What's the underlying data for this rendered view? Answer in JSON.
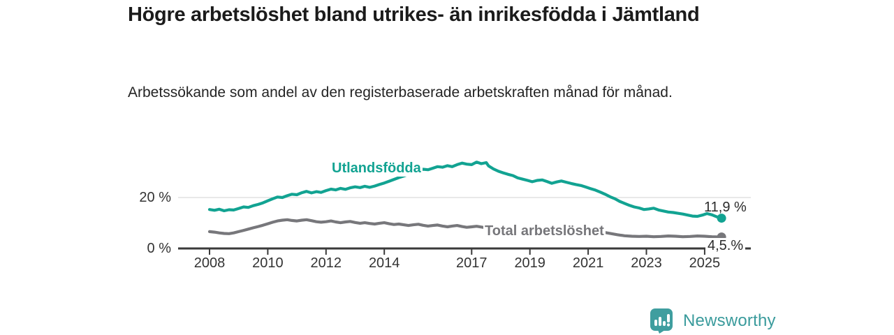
{
  "header": {
    "title": "Högre arbetslöshet bland utrikes- än inrikesfödda i Jämtland",
    "subtitle": "Arbetssökande som andel av den registerbaserade arbetskraften månad för månad."
  },
  "footer": {
    "brand": "Newsworthy",
    "logo_icon": "bar-chart-speech-bubble-icon"
  },
  "colors": {
    "series_foreign": "#12a392",
    "series_total": "#77777b",
    "axis": "#3a3a3a",
    "grid": "#d9d9d9",
    "brand_teal": "#3f9e9f",
    "title_text": "#1b1b1b",
    "body_text": "#242424"
  },
  "chart_data": {
    "type": "line",
    "unit": "%",
    "title": "Högre arbetslöshet bland utrikes- än inrikesfödda i Jämtland",
    "subtitle": "Arbetssökande som andel av den registerbaserade arbetskraften månad för månad.",
    "grid": "single horizontal gridline at 20 %",
    "legend_position": "inline line labels",
    "x_domain": [
      2006.9,
      2026.6
    ],
    "y_domain": [
      0,
      37
    ],
    "x_ticks": [
      2008,
      2010,
      2012,
      2014,
      2017,
      2019,
      2021,
      2023,
      2025
    ],
    "y_ticks": [
      {
        "value": 0,
        "label": "0 %"
      },
      {
        "value": 20,
        "label": "20 %"
      }
    ],
    "series": [
      {
        "name": "utlandsfodda",
        "label": "Utlandsfödda",
        "color": "#12a392",
        "end_label": "11,9 %",
        "end_value": 11.9,
        "points": [
          [
            2008.0,
            15.3
          ],
          [
            2008.17,
            15.0
          ],
          [
            2008.33,
            15.4
          ],
          [
            2008.5,
            14.8
          ],
          [
            2008.67,
            15.2
          ],
          [
            2008.83,
            15.1
          ],
          [
            2009.0,
            15.7
          ],
          [
            2009.17,
            16.3
          ],
          [
            2009.33,
            16.1
          ],
          [
            2009.5,
            16.8
          ],
          [
            2009.67,
            17.3
          ],
          [
            2009.83,
            17.9
          ],
          [
            2010.0,
            18.7
          ],
          [
            2010.17,
            19.5
          ],
          [
            2010.33,
            20.2
          ],
          [
            2010.5,
            20.0
          ],
          [
            2010.67,
            20.7
          ],
          [
            2010.83,
            21.3
          ],
          [
            2011.0,
            21.1
          ],
          [
            2011.17,
            21.9
          ],
          [
            2011.33,
            22.4
          ],
          [
            2011.5,
            21.8
          ],
          [
            2011.67,
            22.3
          ],
          [
            2011.83,
            22.0
          ],
          [
            2012.0,
            22.7
          ],
          [
            2012.17,
            23.3
          ],
          [
            2012.33,
            23.0
          ],
          [
            2012.5,
            23.6
          ],
          [
            2012.67,
            23.2
          ],
          [
            2012.83,
            23.8
          ],
          [
            2013.0,
            24.2
          ],
          [
            2013.17,
            23.9
          ],
          [
            2013.33,
            24.4
          ],
          [
            2013.5,
            24.0
          ],
          [
            2013.67,
            24.5
          ],
          [
            2013.83,
            25.1
          ],
          [
            2014.0,
            25.7
          ],
          [
            2014.17,
            26.4
          ],
          [
            2014.33,
            27.1
          ],
          [
            2014.5,
            27.8
          ],
          [
            2014.67,
            28.4
          ],
          [
            2014.83,
            29.1
          ],
          [
            2015.0,
            29.8
          ],
          [
            2015.17,
            30.4
          ],
          [
            2015.33,
            31.1
          ],
          [
            2015.5,
            30.9
          ],
          [
            2015.67,
            31.5
          ],
          [
            2015.83,
            32.1
          ],
          [
            2016.0,
            31.9
          ],
          [
            2016.17,
            32.5
          ],
          [
            2016.33,
            32.1
          ],
          [
            2016.5,
            32.9
          ],
          [
            2016.67,
            33.5
          ],
          [
            2016.83,
            33.1
          ],
          [
            2017.0,
            32.9
          ],
          [
            2017.17,
            33.9
          ],
          [
            2017.33,
            33.3
          ],
          [
            2017.5,
            33.7
          ],
          [
            2017.58,
            32.4
          ],
          [
            2017.75,
            31.2
          ],
          [
            2017.92,
            30.3
          ],
          [
            2018.08,
            29.7
          ],
          [
            2018.25,
            29.1
          ],
          [
            2018.42,
            28.6
          ],
          [
            2018.58,
            27.7
          ],
          [
            2018.75,
            27.2
          ],
          [
            2018.92,
            26.7
          ],
          [
            2019.08,
            26.2
          ],
          [
            2019.25,
            26.7
          ],
          [
            2019.42,
            26.9
          ],
          [
            2019.58,
            26.3
          ],
          [
            2019.75,
            25.6
          ],
          [
            2019.92,
            26.1
          ],
          [
            2020.08,
            26.5
          ],
          [
            2020.25,
            26.0
          ],
          [
            2020.42,
            25.5
          ],
          [
            2020.58,
            25.1
          ],
          [
            2020.75,
            24.7
          ],
          [
            2020.92,
            24.1
          ],
          [
            2021.08,
            23.5
          ],
          [
            2021.25,
            22.9
          ],
          [
            2021.42,
            22.1
          ],
          [
            2021.58,
            21.3
          ],
          [
            2021.75,
            20.3
          ],
          [
            2021.92,
            19.5
          ],
          [
            2022.08,
            18.5
          ],
          [
            2022.25,
            17.7
          ],
          [
            2022.42,
            16.9
          ],
          [
            2022.58,
            16.3
          ],
          [
            2022.75,
            15.9
          ],
          [
            2022.92,
            15.3
          ],
          [
            2023.08,
            15.5
          ],
          [
            2023.25,
            15.8
          ],
          [
            2023.42,
            15.1
          ],
          [
            2023.58,
            14.7
          ],
          [
            2023.75,
            14.3
          ],
          [
            2023.92,
            14.1
          ],
          [
            2024.08,
            13.8
          ],
          [
            2024.25,
            13.5
          ],
          [
            2024.42,
            13.1
          ],
          [
            2024.58,
            12.7
          ],
          [
            2024.75,
            12.6
          ],
          [
            2024.92,
            13.1
          ],
          [
            2025.08,
            13.7
          ],
          [
            2025.25,
            13.2
          ],
          [
            2025.42,
            12.4
          ],
          [
            2025.58,
            11.9
          ]
        ]
      },
      {
        "name": "total-arbetsloshet",
        "label": "Total arbetslöshet",
        "color": "#77777b",
        "end_label": "4,5.%",
        "end_value": 4.5,
        "points": [
          [
            2008.0,
            6.6
          ],
          [
            2008.17,
            6.4
          ],
          [
            2008.33,
            6.1
          ],
          [
            2008.5,
            5.9
          ],
          [
            2008.67,
            5.8
          ],
          [
            2008.83,
            6.1
          ],
          [
            2009.0,
            6.6
          ],
          [
            2009.17,
            7.1
          ],
          [
            2009.33,
            7.6
          ],
          [
            2009.5,
            8.1
          ],
          [
            2009.67,
            8.6
          ],
          [
            2009.83,
            9.1
          ],
          [
            2010.0,
            9.7
          ],
          [
            2010.17,
            10.3
          ],
          [
            2010.33,
            10.8
          ],
          [
            2010.5,
            11.1
          ],
          [
            2010.67,
            11.3
          ],
          [
            2010.83,
            11.0
          ],
          [
            2011.0,
            10.8
          ],
          [
            2011.17,
            11.1
          ],
          [
            2011.33,
            11.3
          ],
          [
            2011.5,
            10.9
          ],
          [
            2011.67,
            10.5
          ],
          [
            2011.83,
            10.3
          ],
          [
            2012.0,
            10.5
          ],
          [
            2012.17,
            10.8
          ],
          [
            2012.33,
            10.4
          ],
          [
            2012.5,
            10.1
          ],
          [
            2012.67,
            10.4
          ],
          [
            2012.83,
            10.6
          ],
          [
            2013.0,
            10.2
          ],
          [
            2013.17,
            9.9
          ],
          [
            2013.33,
            10.1
          ],
          [
            2013.5,
            9.8
          ],
          [
            2013.67,
            9.6
          ],
          [
            2013.83,
            9.9
          ],
          [
            2014.0,
            10.1
          ],
          [
            2014.17,
            9.7
          ],
          [
            2014.33,
            9.4
          ],
          [
            2014.5,
            9.6
          ],
          [
            2014.67,
            9.3
          ],
          [
            2014.83,
            9.0
          ],
          [
            2015.0,
            9.3
          ],
          [
            2015.17,
            9.5
          ],
          [
            2015.33,
            9.1
          ],
          [
            2015.5,
            8.8
          ],
          [
            2015.67,
            9.0
          ],
          [
            2015.83,
            9.2
          ],
          [
            2016.0,
            8.8
          ],
          [
            2016.17,
            8.5
          ],
          [
            2016.33,
            8.8
          ],
          [
            2016.5,
            9.0
          ],
          [
            2016.67,
            8.6
          ],
          [
            2016.83,
            8.3
          ],
          [
            2017.0,
            8.5
          ],
          [
            2017.17,
            8.7
          ],
          [
            2017.33,
            8.4
          ],
          [
            2017.5,
            8.1
          ],
          [
            2017.67,
            8.3
          ],
          [
            2017.83,
            8.0
          ],
          [
            2018.0,
            7.8
          ],
          [
            2018.25,
            7.9
          ],
          [
            2018.5,
            7.6
          ],
          [
            2018.75,
            7.4
          ],
          [
            2019.0,
            7.2
          ],
          [
            2019.5,
            7.0
          ],
          [
            2020.0,
            7.4
          ],
          [
            2020.5,
            7.6
          ],
          [
            2021.0,
            7.2
          ],
          [
            2021.5,
            6.4
          ],
          [
            2022.0,
            5.4
          ],
          [
            2022.25,
            5.0
          ],
          [
            2022.5,
            4.8
          ],
          [
            2022.75,
            4.7
          ],
          [
            2023.0,
            4.8
          ],
          [
            2023.25,
            4.6
          ],
          [
            2023.5,
            4.7
          ],
          [
            2023.75,
            4.9
          ],
          [
            2024.0,
            4.8
          ],
          [
            2024.25,
            4.6
          ],
          [
            2024.5,
            4.7
          ],
          [
            2024.75,
            4.9
          ],
          [
            2025.0,
            4.8
          ],
          [
            2025.25,
            4.6
          ],
          [
            2025.58,
            4.5
          ]
        ]
      }
    ]
  }
}
